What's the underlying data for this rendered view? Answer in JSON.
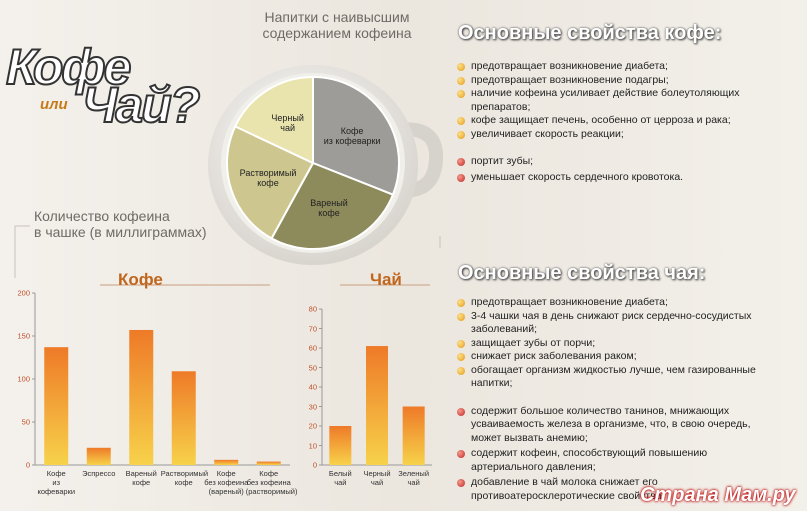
{
  "title": {
    "line1": "Кофе",
    "line2": "или",
    "line3": "Чай?"
  },
  "chart_caption": "Количество кофеина\nв чашке (в миллиграммах)",
  "coffee_section": {
    "heading": "Основные свойства кофе:",
    "pros": [
      "предотвращает возникновение диабета;",
      "предотвращает возникновение подагры;",
      "наличие кофеина усиливает действие болеутоляющих препаратов;",
      "кофе защищает печень, особенно от церроза и рака;",
      "увеличивает скорость реакции;"
    ],
    "cons": [
      "портит зубы;",
      "уменьшает скорость сердечного кровотока."
    ]
  },
  "tea_section": {
    "heading": "Основные свойства чая:",
    "pros": [
      "предотвращает возникновение диабета;",
      "3-4 чашки чая в день снижают риск сердечно-сосудистых заболеваний;",
      "защищает зубы от порчи;",
      "снижает риск заболевания раком;",
      "обогащает организм жидкостью лучше, чем газированные напитки;"
    ],
    "cons": [
      "содержит большое количество танинов, мнижающих усваиваемость железа в организме, что, в свою очередь, может вызвать анемию;",
      "содержит кофеин, способствующий повышению артериального давления;",
      "добавление в чай молока снижает его противоатеросклеротические свойства"
    ]
  },
  "watermark": "Страна Мам.ру",
  "chart_data": [
    {
      "type": "pie",
      "title": "Напитки с наивысшим\nсодержанием кофеина",
      "categories": [
        "Кофе\nиз кофеварки",
        "Вареный\nкофе",
        "Растворимый\nкофе",
        "Черный\nчай"
      ],
      "values": [
        31,
        27,
        24,
        18
      ],
      "colors": [
        "#9d9c98",
        "#8d8b5c",
        "#cdc78f",
        "#e9e3ad"
      ]
    },
    {
      "type": "bar",
      "title": "Кофе",
      "categories": [
        "Кофе\nиз кофеварки",
        "Эспрессо",
        "Вареный\nкофе",
        "Растворимый\nкофе",
        "Кофе\nбез кофеина\n(вареный)",
        "Кофе\nбез кофеина\n(растворимый)"
      ],
      "values": [
        137,
        20,
        157,
        109,
        6,
        4
      ],
      "color": "#ee7a28",
      "ylim": [
        0,
        200
      ],
      "yticks": [
        0,
        50,
        100,
        150,
        200
      ],
      "grid": false
    },
    {
      "type": "bar",
      "title": "Чай",
      "categories": [
        "Белый\nчай",
        "Черный\nчай",
        "Зеленый\nчай"
      ],
      "values": [
        20,
        61,
        30
      ],
      "color": "#ee7a28",
      "ylim": [
        0,
        80
      ],
      "yticks": [
        0,
        10,
        20,
        30,
        40,
        50,
        60,
        70,
        80
      ],
      "grid": false
    }
  ]
}
